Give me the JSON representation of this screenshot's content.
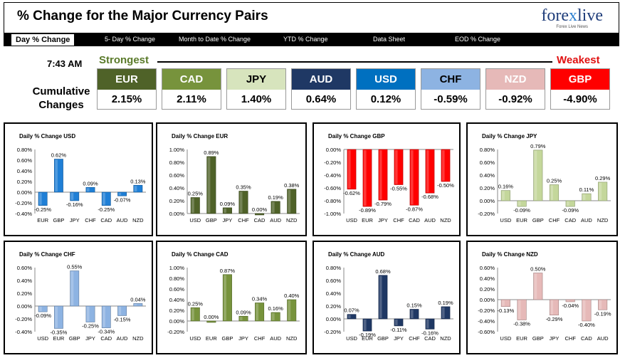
{
  "header": {
    "title": "% Change for the Major Currency Pairs",
    "logo_part1": "fore",
    "logo_x": "x",
    "logo_part2": "live",
    "logo_tagline": "Forex Live News",
    "nav": [
      "Day % Change",
      "5- Day % Change",
      "Month to Date % Change",
      "YTD % Change",
      "Data Sheet",
      "EOD % Change"
    ]
  },
  "summary": {
    "time": "7:43 AM",
    "strongest_label": "Strongest",
    "weakest_label": "Weakest",
    "cumulative_label_1": "Cumulative",
    "cumulative_label_2": "Changes",
    "currencies": [
      {
        "code": "EUR",
        "value": "2.15%",
        "bg": "#4f6228",
        "fg": "#ffffff"
      },
      {
        "code": "CAD",
        "value": "2.11%",
        "bg": "#77933c",
        "fg": "#ffffff"
      },
      {
        "code": "JPY",
        "value": "1.40%",
        "bg": "#d7e4bd",
        "fg": "#000000"
      },
      {
        "code": "AUD",
        "value": "0.64%",
        "bg": "#1f3864",
        "fg": "#ffffff"
      },
      {
        "code": "USD",
        "value": "0.12%",
        "bg": "#0070c0",
        "fg": "#ffffff"
      },
      {
        "code": "CHF",
        "value": "-0.59%",
        "bg": "#8db3e2",
        "fg": "#000000"
      },
      {
        "code": "NZD",
        "value": "-0.92%",
        "bg": "#e6b9b8",
        "fg": "#ffffff"
      },
      {
        "code": "GBP",
        "value": "-4.90%",
        "bg": "#ff0000",
        "fg": "#ffffff"
      }
    ]
  },
  "chart_data": [
    {
      "type": "bar",
      "title": "Daily % Change USD",
      "categories": [
        "EUR",
        "GBP",
        "JPY",
        "CHF",
        "CAD",
        "AUD",
        "NZD"
      ],
      "values": [
        -0.25,
        0.62,
        -0.16,
        0.09,
        -0.25,
        -0.07,
        0.13
      ],
      "ylim": [
        -0.4,
        0.8
      ],
      "yticks": [
        "0.80%",
        "0.60%",
        "0.40%",
        "0.20%",
        "0.00%",
        "-0.20%",
        "-0.40%"
      ],
      "labels": [
        "-0.25%",
        "0.62%",
        "-0.16%",
        "0.09%",
        "-0.25%",
        "-0.07%",
        "0.13%"
      ],
      "color": "#1f7fd6"
    },
    {
      "type": "bar",
      "title": "Daily % Change EUR",
      "categories": [
        "USD",
        "GBP",
        "JPY",
        "CHF",
        "CAD",
        "AUD",
        "NZD"
      ],
      "values": [
        0.25,
        0.89,
        0.09,
        0.35,
        0.0,
        0.19,
        0.38
      ],
      "ylim": [
        0,
        1
      ],
      "yticks": [
        "1.00%",
        "0.80%",
        "0.60%",
        "0.40%",
        "0.20%",
        "0.00%"
      ],
      "labels": [
        "0.25%",
        "0.89%",
        "0.09%",
        "0.35%",
        "0.00%",
        "0.19%",
        "0.38%"
      ],
      "color": "#4f6228"
    },
    {
      "type": "bar",
      "title": "Daily % Change GBP",
      "categories": [
        "USD",
        "EUR",
        "JPY",
        "CHF",
        "CAD",
        "AUD",
        "NZD"
      ],
      "values": [
        -0.62,
        -0.89,
        -0.79,
        -0.55,
        -0.87,
        -0.68,
        -0.5
      ],
      "ylim": [
        -1,
        0
      ],
      "yticks": [
        "0.00%",
        "-0.20%",
        "-0.40%",
        "-0.60%",
        "-0.80%",
        "-1.00%"
      ],
      "labels": [
        "-0.62%",
        "-0.89%",
        "-0.79%",
        "-0.55%",
        "-0.87%",
        "-0.68%",
        "-0.50%"
      ],
      "color": "#ff0000"
    },
    {
      "type": "bar",
      "title": "Daily % Change JPY",
      "categories": [
        "USD",
        "EUR",
        "GBP",
        "CHF",
        "CAD",
        "AUD",
        "NZD"
      ],
      "values": [
        0.16,
        -0.09,
        0.79,
        0.25,
        -0.09,
        0.11,
        0.29
      ],
      "ylim": [
        -0.2,
        0.8
      ],
      "yticks": [
        "0.80%",
        "0.60%",
        "0.40%",
        "0.20%",
        "0.00%",
        "-0.20%"
      ],
      "labels": [
        "0.16%",
        "-0.09%",
        "0.79%",
        "0.25%",
        "-0.09%",
        "0.11%",
        "0.29%"
      ],
      "color": "#c4d79b"
    },
    {
      "type": "bar",
      "title": "Daily % Change CHF",
      "categories": [
        "USD",
        "EUR",
        "GBP",
        "JPY",
        "CAD",
        "AUD",
        "NZD"
      ],
      "values": [
        -0.09,
        -0.35,
        0.55,
        -0.25,
        -0.34,
        -0.15,
        0.04
      ],
      "ylim": [
        -0.4,
        0.6
      ],
      "yticks": [
        "0.60%",
        "0.40%",
        "0.20%",
        "0.00%",
        "-0.20%",
        "-0.40%"
      ],
      "labels": [
        "-0.09%",
        "-0.35%",
        "0.55%",
        "-0.25%",
        "-0.34%",
        "-0.15%",
        "0.04%"
      ],
      "color": "#8db3e2"
    },
    {
      "type": "bar",
      "title": "Daily % Change CAD",
      "categories": [
        "USD",
        "EUR",
        "GBP",
        "JPY",
        "CHF",
        "AUD",
        "NZD"
      ],
      "values": [
        0.25,
        0.0,
        0.87,
        0.09,
        0.34,
        0.16,
        0.4
      ],
      "ylim": [
        -0.2,
        1
      ],
      "yticks": [
        "1.00%",
        "0.80%",
        "0.60%",
        "0.40%",
        "0.20%",
        "0.00%",
        "-0.20%"
      ],
      "labels": [
        "0.25%",
        "0.00%",
        "0.87%",
        "0.09%",
        "0.34%",
        "0.16%",
        "0.40%"
      ],
      "color": "#77933c"
    },
    {
      "type": "bar",
      "title": "Daily % Change AUD",
      "categories": [
        "USD",
        "EUR",
        "GBP",
        "JPY",
        "CHF",
        "CAD",
        "NZD"
      ],
      "values": [
        0.07,
        -0.19,
        0.68,
        -0.11,
        0.15,
        -0.16,
        0.19
      ],
      "ylim": [
        -0.2,
        0.8
      ],
      "yticks": [
        "0.80%",
        "0.60%",
        "0.40%",
        "0.20%",
        "0.00%",
        "-0.20%"
      ],
      "labels": [
        "0.07%",
        "-0.19%",
        "0.68%",
        "-0.11%",
        "0.15%",
        "-0.16%",
        "0.19%"
      ],
      "color": "#1f3864"
    },
    {
      "type": "bar",
      "title": "Daily % Change NZD",
      "categories": [
        "USD",
        "EUR",
        "GBP",
        "JPY",
        "CHF",
        "CAD",
        "AUD"
      ],
      "values": [
        -0.13,
        -0.38,
        0.5,
        -0.29,
        -0.04,
        -0.4,
        -0.19
      ],
      "ylim": [
        -0.6,
        0.6
      ],
      "yticks": [
        "0.60%",
        "0.40%",
        "0.20%",
        "0.00%",
        "-0.20%",
        "-0.40%",
        "-0.60%"
      ],
      "labels": [
        "-0.13%",
        "-0.38%",
        "0.50%",
        "-0.29%",
        "-0.04%",
        "-0.40%",
        "-0.19%"
      ],
      "color": "#e6b9b8"
    }
  ]
}
